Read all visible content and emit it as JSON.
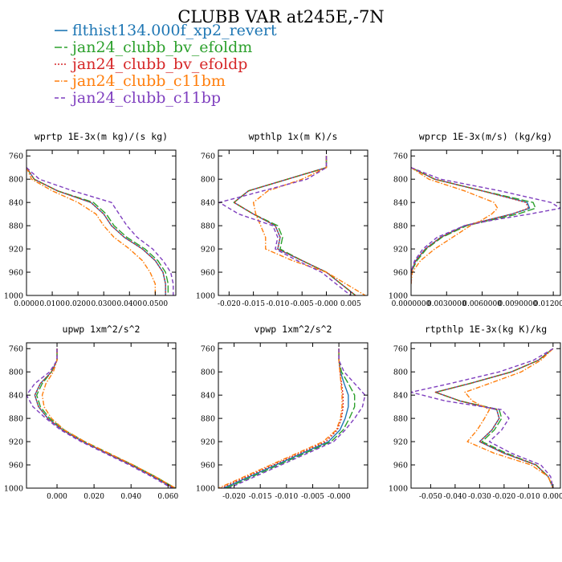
{
  "title": "CLUBB VAR at245E,-7N",
  "legend": [
    {
      "name": "flthist134.000f_xp2_revert",
      "color": "#1f77b4",
      "dash": "solid"
    },
    {
      "name": "jan24_clubb_bv_efoldm",
      "color": "#2ca02c",
      "dash": "longdash"
    },
    {
      "name": "jan24_clubb_bv_efoldp",
      "color": "#d62728",
      "dash": "dot"
    },
    {
      "name": "jan24_clubb_c11bm",
      "color": "#ff7f0e",
      "dash": "dashdot"
    },
    {
      "name": "jan24_clubb_c11bp",
      "color": "#7f3fbf",
      "dash": "dash"
    }
  ],
  "chart_data": [
    {
      "type": "line",
      "title": "wprtp  1E-3x(m kg)/(s kg)",
      "xlim": [
        0.0,
        0.058
      ],
      "ylim": [
        1000,
        750
      ],
      "yticks": [
        760,
        800,
        840,
        880,
        920,
        960,
        1000
      ],
      "xticks": [
        0.0,
        0.01,
        0.02,
        0.03,
        0.04,
        0.05
      ],
      "xtick_labels": [
        "0.0000",
        "0.0100",
        "0.0200",
        "0.0300",
        "0.0400",
        "0.0500"
      ],
      "y": [
        780,
        800,
        820,
        840,
        860,
        880,
        900,
        920,
        940,
        960,
        980,
        1000
      ],
      "series": [
        {
          "name": "flthist134.000f_xp2_revert",
          "values": [
            0.0,
            0.003,
            0.012,
            0.025,
            0.03,
            0.033,
            0.038,
            0.045,
            0.05,
            0.053,
            0.054,
            0.054
          ]
        },
        {
          "name": "jan24_clubb_bv_efoldm",
          "values": [
            0.0,
            0.003,
            0.012,
            0.026,
            0.031,
            0.034,
            0.039,
            0.046,
            0.051,
            0.054,
            0.055,
            0.055
          ]
        },
        {
          "name": "jan24_clubb_bv_efoldp",
          "values": [
            0.0,
            0.003,
            0.012,
            0.025,
            0.03,
            0.033,
            0.038,
            0.045,
            0.05,
            0.053,
            0.054,
            0.054
          ]
        },
        {
          "name": "jan24_clubb_c11bm",
          "values": [
            0.0,
            0.002,
            0.01,
            0.02,
            0.027,
            0.03,
            0.034,
            0.04,
            0.045,
            0.048,
            0.05,
            0.05
          ]
        },
        {
          "name": "jan24_clubb_c11bp",
          "values": [
            0.0,
            0.005,
            0.018,
            0.033,
            0.036,
            0.039,
            0.043,
            0.049,
            0.053,
            0.056,
            0.057,
            0.057
          ]
        }
      ]
    },
    {
      "type": "line",
      "title": "wpthlp  1x(m K)/s",
      "xlim": [
        -0.0222,
        0.0085
      ],
      "ylim": [
        1000,
        750
      ],
      "yticks": [
        760,
        800,
        840,
        880,
        920,
        960,
        1000
      ],
      "xticks": [
        -0.02,
        -0.015,
        -0.01,
        -0.005,
        0.0,
        0.005
      ],
      "xtick_labels": [
        "-0.020",
        "-0.015",
        "-0.010",
        "-0.005",
        "-0.000",
        "0.005"
      ],
      "y": [
        760,
        780,
        800,
        820,
        840,
        860,
        880,
        900,
        920,
        940,
        960,
        980,
        1000
      ],
      "series": [
        {
          "name": "flthist134.000f_xp2_revert",
          "values": [
            0.0,
            0.0,
            -0.008,
            -0.016,
            -0.019,
            -0.015,
            -0.0105,
            -0.0095,
            -0.01,
            -0.005,
            0.0,
            0.003,
            0.006
          ]
        },
        {
          "name": "jan24_clubb_bv_efoldm",
          "values": [
            0.0,
            0.0,
            -0.008,
            -0.016,
            -0.019,
            -0.015,
            -0.01,
            -0.009,
            -0.0095,
            -0.005,
            0.0,
            0.003,
            0.006
          ]
        },
        {
          "name": "jan24_clubb_bv_efoldp",
          "values": [
            0.0,
            0.0,
            -0.008,
            -0.016,
            -0.019,
            -0.015,
            -0.0105,
            -0.0095,
            -0.01,
            -0.005,
            0.0,
            0.003,
            0.006
          ]
        },
        {
          "name": "jan24_clubb_c11bm",
          "values": [
            0.0,
            0.0,
            -0.005,
            -0.012,
            -0.015,
            -0.0145,
            -0.0135,
            -0.0125,
            -0.0125,
            -0.007,
            0.0,
            0.004,
            0.008
          ]
        },
        {
          "name": "jan24_clubb_c11bp",
          "values": [
            0.0,
            0.0,
            -0.004,
            -0.013,
            -0.022,
            -0.018,
            -0.011,
            -0.01,
            -0.0105,
            -0.006,
            -0.001,
            0.002,
            0.005
          ]
        }
      ]
    },
    {
      "type": "line",
      "title": "wprcp  1E-3x(m/s) (kg/kg)",
      "xlim": [
        0.0,
        0.0126
      ],
      "ylim": [
        1000,
        750
      ],
      "yticks": [
        760,
        800,
        840,
        880,
        920,
        960,
        1000
      ],
      "xticks": [
        0.0,
        0.003,
        0.006,
        0.009,
        0.012
      ],
      "xtick_labels": [
        "0.0000000",
        "0.0030000",
        "0.0060000",
        "0.0090000",
        "0.0120000"
      ],
      "y": [
        780,
        800,
        820,
        840,
        850,
        860,
        870,
        880,
        900,
        920,
        940,
        960,
        980
      ],
      "series": [
        {
          "name": "flthist134.000f_xp2_revert",
          "values": [
            0.0,
            0.002,
            0.006,
            0.0098,
            0.01,
            0.0085,
            0.0065,
            0.0045,
            0.0025,
            0.0012,
            0.0004,
            0.0,
            0.0
          ]
        },
        {
          "name": "jan24_clubb_bv_efoldm",
          "values": [
            0.0,
            0.002,
            0.006,
            0.0103,
            0.0105,
            0.009,
            0.0068,
            0.0047,
            0.0026,
            0.0013,
            0.0005,
            0.0,
            0.0
          ]
        },
        {
          "name": "jan24_clubb_bv_efoldp",
          "values": [
            0.0,
            0.002,
            0.006,
            0.0097,
            0.0099,
            0.0085,
            0.0065,
            0.0045,
            0.0025,
            0.0012,
            0.0004,
            0.0,
            0.0
          ]
        },
        {
          "name": "jan24_clubb_c11bm",
          "values": [
            0.0,
            0.0015,
            0.0045,
            0.007,
            0.0073,
            0.0068,
            0.006,
            0.005,
            0.0035,
            0.002,
            0.0008,
            0.0001,
            0.0
          ]
        },
        {
          "name": "jan24_clubb_c11bp",
          "values": [
            0.0,
            0.0025,
            0.0075,
            0.0118,
            0.0126,
            0.01,
            0.007,
            0.0045,
            0.0022,
            0.001,
            0.0003,
            0.0,
            0.0
          ]
        }
      ]
    },
    {
      "type": "line",
      "title": "upwp  1xm^2/s^2",
      "xlim": [
        -0.0165,
        0.0642
      ],
      "ylim": [
        1000,
        750
      ],
      "yticks": [
        760,
        800,
        840,
        880,
        920,
        960,
        1000
      ],
      "xticks": [
        0.0,
        0.02,
        0.04,
        0.06
      ],
      "xtick_labels": [
        "0.000",
        "0.020",
        "0.040",
        "0.060"
      ],
      "y": [
        760,
        780,
        800,
        820,
        840,
        860,
        880,
        900,
        920,
        940,
        960,
        980,
        1000
      ],
      "series": [
        {
          "name": "flthist134.000f_xp2_revert",
          "values": [
            0.0,
            0.0,
            -0.003,
            -0.009,
            -0.012,
            -0.01,
            -0.005,
            0.003,
            0.014,
            0.027,
            0.04,
            0.052,
            0.063
          ]
        },
        {
          "name": "jan24_clubb_bv_efoldm",
          "values": [
            0.0,
            0.0,
            -0.003,
            -0.008,
            -0.011,
            -0.009,
            -0.004,
            0.004,
            0.015,
            0.028,
            0.041,
            0.053,
            0.064
          ]
        },
        {
          "name": "jan24_clubb_bv_efoldp",
          "values": [
            0.0,
            0.0,
            -0.003,
            -0.009,
            -0.012,
            -0.01,
            -0.005,
            0.003,
            0.014,
            0.027,
            0.04,
            0.052,
            0.063
          ]
        },
        {
          "name": "jan24_clubb_c11bm",
          "values": [
            0.0,
            0.0,
            -0.002,
            -0.006,
            -0.008,
            -0.007,
            -0.003,
            0.004,
            0.015,
            0.028,
            0.041,
            0.053,
            0.064
          ]
        },
        {
          "name": "jan24_clubb_c11bp",
          "values": [
            0.0,
            0.0,
            -0.004,
            -0.012,
            -0.0165,
            -0.013,
            -0.006,
            0.002,
            0.013,
            0.026,
            0.039,
            0.051,
            0.062
          ]
        }
      ]
    },
    {
      "type": "line",
      "title": "vpwp  1xm^2/s^2",
      "xlim": [
        -0.023,
        0.0055
      ],
      "ylim": [
        1000,
        750
      ],
      "yticks": [
        760,
        800,
        840,
        880,
        920,
        960,
        1000
      ],
      "xticks": [
        -0.02,
        -0.015,
        -0.01,
        -0.005,
        0.0
      ],
      "xtick_labels": [
        "-0.020",
        "-0.015",
        "-0.010",
        "-0.005",
        "-0.000"
      ],
      "y": [
        760,
        780,
        800,
        820,
        840,
        860,
        880,
        900,
        920,
        940,
        960,
        980,
        1000
      ],
      "series": [
        {
          "name": "flthist134.000f_xp2_revert",
          "values": [
            0.0,
            0.0,
            0.0003,
            0.001,
            0.0018,
            0.0018,
            0.0012,
            0.0002,
            -0.002,
            -0.007,
            -0.012,
            -0.017,
            -0.022
          ]
        },
        {
          "name": "jan24_clubb_bv_efoldm",
          "values": [
            0.0,
            0.0,
            0.0005,
            0.0018,
            0.003,
            0.003,
            0.002,
            0.0008,
            -0.0015,
            -0.0065,
            -0.0115,
            -0.0165,
            -0.0215
          ]
        },
        {
          "name": "jan24_clubb_bv_efoldp",
          "values": [
            0.0,
            0.0,
            0.0002,
            0.0005,
            0.0008,
            0.0008,
            0.0005,
            -0.0003,
            -0.0025,
            -0.0075,
            -0.0125,
            -0.0175,
            -0.0225
          ]
        },
        {
          "name": "jan24_clubb_c11bm",
          "values": [
            0.0,
            0.0,
            0.0002,
            0.0004,
            0.0006,
            0.0006,
            0.0003,
            -0.0005,
            -0.003,
            -0.008,
            -0.013,
            -0.018,
            -0.023
          ]
        },
        {
          "name": "jan24_clubb_c11bp",
          "values": [
            0.0,
            0.0,
            0.001,
            0.003,
            0.005,
            0.0045,
            0.003,
            0.0012,
            -0.001,
            -0.006,
            -0.011,
            -0.016,
            -0.021
          ]
        }
      ]
    },
    {
      "type": "line",
      "title": "rtpthlp  1E-3x(kg K)/kg",
      "xlim": [
        -0.058,
        0.003
      ],
      "ylim": [
        1000,
        750
      ],
      "yticks": [
        760,
        800,
        840,
        880,
        920,
        960,
        1000
      ],
      "xticks": [
        -0.05,
        -0.04,
        -0.03,
        -0.02,
        -0.01,
        0.0
      ],
      "xtick_labels": [
        "-0.050",
        "-0.040",
        "-0.030",
        "-0.020",
        "-0.010",
        "0.000"
      ],
      "y": [
        760,
        780,
        800,
        820,
        835,
        850,
        865,
        880,
        900,
        920,
        940,
        960,
        980,
        1000
      ],
      "series": [
        {
          "name": "flthist134.000f_xp2_revert",
          "values": [
            0.0,
            -0.006,
            -0.017,
            -0.034,
            -0.048,
            -0.038,
            -0.023,
            -0.022,
            -0.025,
            -0.03,
            -0.02,
            -0.007,
            -0.002,
            0.0
          ]
        },
        {
          "name": "jan24_clubb_bv_efoldm",
          "values": [
            0.0,
            -0.006,
            -0.017,
            -0.034,
            -0.048,
            -0.038,
            -0.022,
            -0.021,
            -0.024,
            -0.029,
            -0.019,
            -0.007,
            -0.002,
            0.0
          ]
        },
        {
          "name": "jan24_clubb_bv_efoldp",
          "values": [
            0.0,
            -0.006,
            -0.017,
            -0.034,
            -0.048,
            -0.038,
            -0.023,
            -0.022,
            -0.025,
            -0.03,
            -0.02,
            -0.007,
            -0.002,
            0.0
          ]
        },
        {
          "name": "jan24_clubb_c11bm",
          "values": [
            0.0,
            -0.005,
            -0.013,
            -0.026,
            -0.036,
            -0.033,
            -0.026,
            -0.028,
            -0.031,
            -0.035,
            -0.024,
            -0.009,
            -0.002,
            0.0
          ]
        },
        {
          "name": "jan24_clubb_c11bp",
          "values": [
            0.0,
            -0.008,
            -0.022,
            -0.042,
            -0.058,
            -0.044,
            -0.021,
            -0.018,
            -0.021,
            -0.026,
            -0.017,
            -0.005,
            -0.001,
            0.0
          ]
        }
      ]
    }
  ]
}
